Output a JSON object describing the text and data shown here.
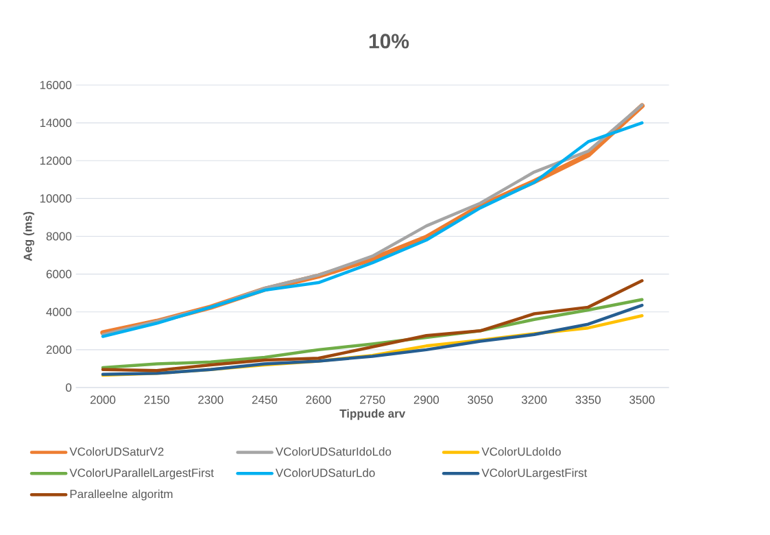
{
  "chart_data": {
    "type": "line",
    "title": "10%",
    "xlabel": "Tippude arv",
    "ylabel": "Aeg (ms)",
    "categories": [
      "2000",
      "2150",
      "2300",
      "2450",
      "2600",
      "2750",
      "2900",
      "3050",
      "3200",
      "3350",
      "3500"
    ],
    "ylim": [
      0,
      16000
    ],
    "yticks": [
      0,
      2000,
      4000,
      6000,
      8000,
      10000,
      12000,
      14000,
      16000
    ],
    "grid": "y",
    "legend": "bottom",
    "marker": "none",
    "line_style": "solid",
    "series": [
      {
        "name": "VColorUDSaturV2",
        "color": "#ed7d31",
        "values": [
          2900,
          3500,
          4250,
          5200,
          5900,
          6800,
          7950,
          9600,
          10900,
          12300,
          14900
        ]
      },
      {
        "name": "VColorUDSaturIdoLdo",
        "color": "#a5a5a5",
        "values": [
          2800,
          3500,
          4250,
          5250,
          5950,
          6950,
          8550,
          9750,
          11400,
          12500,
          14950
        ]
      },
      {
        "name": "VColorULdoIdo",
        "color": "#ffc000",
        "values": [
          650,
          750,
          950,
          1200,
          1400,
          1700,
          2200,
          2500,
          2850,
          3150,
          3800
        ]
      },
      {
        "name": "VColorUParallelLargestFirst",
        "color": "#70ad47",
        "values": [
          1050,
          1250,
          1350,
          1600,
          2000,
          2300,
          2650,
          3000,
          3600,
          4100,
          4650
        ]
      },
      {
        "name": "VColorUDSaturLdo",
        "color": "#00b0f0",
        "values": [
          2700,
          3400,
          4250,
          5150,
          5550,
          6600,
          7800,
          9500,
          10850,
          13000,
          14000
        ]
      },
      {
        "name": "VColorULargestFirst",
        "color": "#255e91",
        "values": [
          700,
          750,
          950,
          1250,
          1400,
          1650,
          2000,
          2450,
          2800,
          3350,
          4350
        ]
      },
      {
        "name": "Paralleelne algoritm",
        "color": "#9e480e",
        "values": [
          950,
          900,
          1200,
          1450,
          1550,
          2150,
          2750,
          3000,
          3900,
          4250,
          5650
        ]
      }
    ]
  }
}
